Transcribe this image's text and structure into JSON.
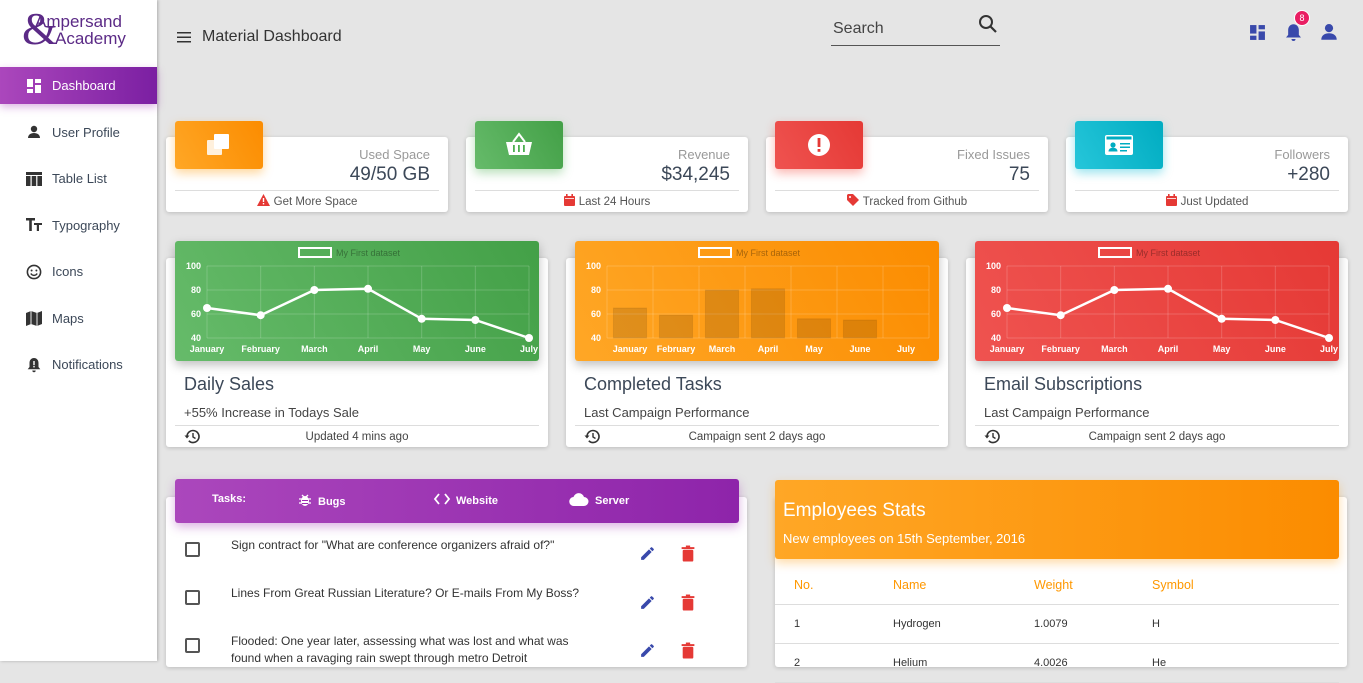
{
  "brand": {
    "line1": "Ampersand",
    "line2": "Academy"
  },
  "sidebar": {
    "items": [
      {
        "label": "Dashboard",
        "icon": "dashboard-icon",
        "active": true
      },
      {
        "label": "User Profile",
        "icon": "person-icon"
      },
      {
        "label": "Table List",
        "icon": "table-icon"
      },
      {
        "label": "Typography",
        "icon": "typography-icon"
      },
      {
        "label": "Icons",
        "icon": "smiley-icon"
      },
      {
        "label": "Maps",
        "icon": "map-icon"
      },
      {
        "label": "Notifications",
        "icon": "bell-alert-icon"
      }
    ]
  },
  "topbar": {
    "title": "Material Dashboard",
    "search_placeholder": "Search",
    "notification_count": "8"
  },
  "stats": [
    {
      "label": "Used Space",
      "value": "49/50 GB",
      "footer": "Get More Space",
      "color": "#ff9800",
      "icon": "copy-icon",
      "footer_icon": "warning-icon"
    },
    {
      "label": "Revenue",
      "value": "$34,245",
      "footer": "Last 24 Hours",
      "color": "#4caf50",
      "icon": "basket-icon",
      "footer_icon": "calendar-icon"
    },
    {
      "label": "Fixed Issues",
      "value": "75",
      "footer": "Tracked from Github",
      "color": "#e53935",
      "icon": "info-icon",
      "footer_icon": "tag-icon"
    },
    {
      "label": "Followers",
      "value": "+280",
      "footer": "Just Updated",
      "color": "#00acc1",
      "icon": "id-card-icon",
      "footer_icon": "calendar-icon"
    }
  ],
  "charts": [
    {
      "title": "Daily Sales",
      "subtitle": "+55% Increase in Todays Sale",
      "footer": "Updated 4 mins ago",
      "color1": "#66bb6a",
      "color2": "#43a047"
    },
    {
      "title": "Completed Tasks",
      "subtitle": "Last Campaign Performance",
      "footer": "Campaign sent 2 days ago",
      "color1": "#ffa726",
      "color2": "#fb8c00"
    },
    {
      "title": "Email Subscriptions",
      "subtitle": "Last Campaign Performance",
      "footer": "Campaign sent 2 days ago",
      "color1": "#ef5350",
      "color2": "#e53935"
    }
  ],
  "chart_data": [
    {
      "type": "line",
      "legend": "My First dataset",
      "categories": [
        "January",
        "February",
        "March",
        "April",
        "May",
        "June",
        "July"
      ],
      "values": [
        65,
        59,
        80,
        81,
        56,
        55,
        40
      ],
      "ylim": [
        40,
        100
      ],
      "yticks": [
        40,
        60,
        80,
        100
      ]
    },
    {
      "type": "bar",
      "legend": "My First dataset",
      "categories": [
        "January",
        "February",
        "March",
        "April",
        "May",
        "June",
        "July"
      ],
      "values": [
        65,
        59,
        80,
        81,
        56,
        55,
        40
      ],
      "ylim": [
        40,
        100
      ],
      "yticks": [
        40,
        60,
        80,
        100
      ]
    },
    {
      "type": "line",
      "legend": "My First dataset",
      "categories": [
        "January",
        "February",
        "March",
        "April",
        "May",
        "June",
        "July"
      ],
      "values": [
        65,
        59,
        80,
        81,
        56,
        55,
        40
      ],
      "ylim": [
        40,
        100
      ],
      "yticks": [
        40,
        60,
        80,
        100
      ]
    }
  ],
  "tasks": {
    "label": "Tasks:",
    "tabs": [
      "Bugs",
      "Website",
      "Server"
    ],
    "items": [
      "Sign contract for \"What are conference organizers afraid of?\"",
      "Lines From Great Russian Literature? Or E-mails From My Boss?",
      "Flooded: One year later, assessing what was lost and what was found when a ravaging rain swept through metro Detroit"
    ]
  },
  "employees": {
    "title": "Employees Stats",
    "subtitle": "New employees on 15th September, 2016",
    "columns": [
      "No.",
      "Name",
      "Weight",
      "Symbol"
    ],
    "rows": [
      [
        "1",
        "Hydrogen",
        "1.0079",
        "H"
      ],
      [
        "2",
        "Helium",
        "4.0026",
        "He"
      ]
    ]
  }
}
